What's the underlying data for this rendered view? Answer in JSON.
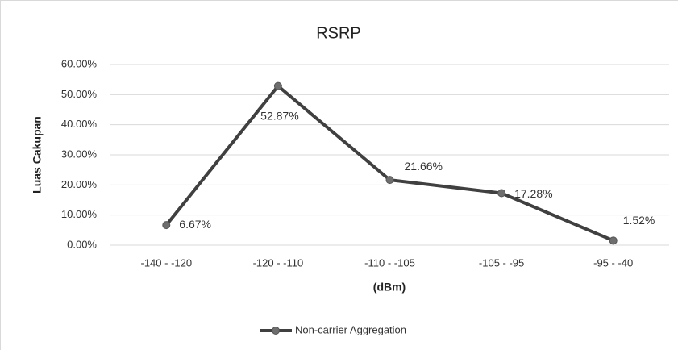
{
  "chart_data": {
    "type": "line",
    "title": "RSRP",
    "xlabel": "(dBm)",
    "ylabel": "Luas Cakupan",
    "categories": [
      "-140 - -120",
      "-120 - -110",
      "-110 - -105",
      "-105 - -95",
      "-95 - -40"
    ],
    "series": [
      {
        "name": "Non-carrier Aggregation",
        "color": "#404040",
        "values": [
          6.67,
          52.87,
          21.66,
          17.28,
          1.52
        ],
        "value_labels": [
          "6.67%",
          "52.87%",
          "21.66%",
          "17.28%",
          "1.52%"
        ]
      }
    ],
    "ylim": [
      0,
      60
    ],
    "yticks": [
      {
        "value": 0,
        "label": "0.00%"
      },
      {
        "value": 10,
        "label": "10.00%"
      },
      {
        "value": 20,
        "label": "20.00%"
      },
      {
        "value": 30,
        "label": "30.00%"
      },
      {
        "value": 40,
        "label": "40.00%"
      },
      {
        "value": 50,
        "label": "50.00%"
      },
      {
        "value": 60,
        "label": "60.00%"
      }
    ],
    "grid": true,
    "legend": "bottom"
  }
}
